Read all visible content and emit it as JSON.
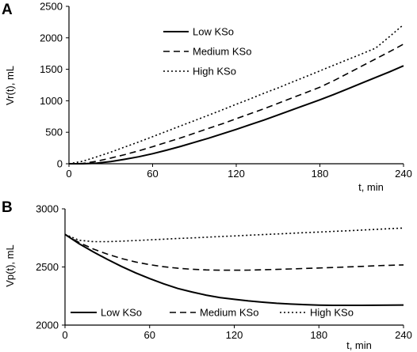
{
  "chart_data": [
    {
      "type": "line",
      "panel_label": "A",
      "xlabel": "t, min",
      "ylabel": "Vr(t), mL",
      "xlim": [
        0,
        240
      ],
      "ylim": [
        0,
        2500
      ],
      "xticks": [
        0,
        60,
        120,
        180,
        240
      ],
      "yticks": [
        0,
        500,
        1000,
        1500,
        2000,
        2500
      ],
      "grid": false,
      "legend_position": "top-center",
      "x": [
        0,
        10,
        20,
        30,
        40,
        50,
        60,
        70,
        80,
        90,
        100,
        110,
        120,
        130,
        140,
        150,
        160,
        170,
        180,
        190,
        200,
        210,
        220,
        230,
        240
      ],
      "series": [
        {
          "name": "Low KSo",
          "style": "solid",
          "values": [
            0,
            0,
            10,
            35,
            70,
            110,
            160,
            215,
            275,
            340,
            405,
            475,
            545,
            620,
            695,
            775,
            855,
            935,
            1015,
            1100,
            1190,
            1280,
            1370,
            1460,
            1555
          ]
        },
        {
          "name": "Medium KSo",
          "style": "dashed",
          "values": [
            0,
            5,
            40,
            90,
            145,
            205,
            270,
            340,
            410,
            485,
            560,
            635,
            715,
            795,
            875,
            960,
            1045,
            1130,
            1215,
            1320,
            1435,
            1550,
            1665,
            1780,
            1900
          ]
        },
        {
          "name": "High KSo",
          "style": "dotted",
          "values": [
            0,
            40,
            110,
            185,
            265,
            345,
            430,
            515,
            600,
            685,
            770,
            855,
            945,
            1030,
            1120,
            1205,
            1295,
            1385,
            1475,
            1565,
            1655,
            1745,
            1835,
            2020,
            2210
          ]
        }
      ]
    },
    {
      "type": "line",
      "panel_label": "B",
      "xlabel": "t, min",
      "ylabel": "Vp(t), mL",
      "xlim": [
        0,
        240
      ],
      "ylim": [
        2000,
        3000
      ],
      "xticks": [
        0,
        60,
        120,
        180,
        240
      ],
      "yticks": [
        2000,
        2500,
        3000
      ],
      "grid": false,
      "legend_position": "bottom-center",
      "x": [
        0,
        10,
        20,
        30,
        40,
        50,
        60,
        70,
        80,
        90,
        100,
        110,
        120,
        130,
        140,
        150,
        160,
        170,
        180,
        190,
        200,
        210,
        220,
        230,
        240
      ],
      "series": [
        {
          "name": "Low KSo",
          "style": "solid",
          "values": [
            2780,
            2700,
            2630,
            2565,
            2505,
            2450,
            2400,
            2355,
            2315,
            2285,
            2258,
            2237,
            2222,
            2208,
            2197,
            2188,
            2181,
            2176,
            2172,
            2170,
            2170,
            2170,
            2171,
            2172,
            2173
          ]
        },
        {
          "name": "Medium KSo",
          "style": "dashed",
          "values": [
            2780,
            2710,
            2655,
            2610,
            2573,
            2543,
            2520,
            2502,
            2489,
            2480,
            2475,
            2472,
            2472,
            2473,
            2476,
            2479,
            2483,
            2487,
            2491,
            2495,
            2500,
            2505,
            2510,
            2514,
            2518
          ]
        },
        {
          "name": "High KSo",
          "style": "dotted",
          "values": [
            2780,
            2730,
            2718,
            2718,
            2722,
            2727,
            2733,
            2739,
            2745,
            2750,
            2756,
            2762,
            2767,
            2773,
            2778,
            2784,
            2789,
            2795,
            2800,
            2806,
            2811,
            2817,
            2823,
            2829,
            2835
          ]
        }
      ]
    }
  ]
}
